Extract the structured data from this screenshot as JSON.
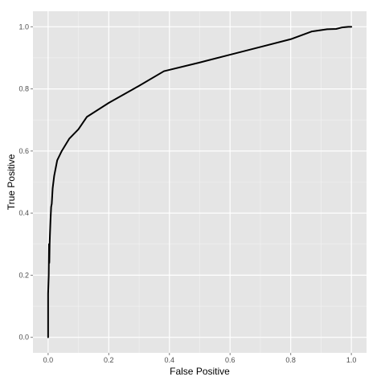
{
  "chart_data": {
    "type": "line",
    "title": "",
    "xlabel": "False Positive",
    "ylabel": "True Positive",
    "xlim": [
      -0.05,
      1.05
    ],
    "ylim": [
      -0.05,
      1.05
    ],
    "x_ticks": [
      0.0,
      0.2,
      0.4,
      0.6,
      0.8,
      1.0
    ],
    "y_ticks": [
      0.0,
      0.2,
      0.4,
      0.6,
      0.8,
      1.0
    ],
    "x_tick_labels": [
      "0.0",
      "0.2",
      "0.4",
      "0.6",
      "0.8",
      "1.0"
    ],
    "y_tick_labels": [
      "0.0",
      "0.2",
      "0.4",
      "0.6",
      "0.8",
      "1.0"
    ],
    "grid": true,
    "legend": "none",
    "series": [
      {
        "x": [
          0.0,
          0.0,
          0.002,
          0.003,
          0.004,
          0.005,
          0.006,
          0.008,
          0.01,
          0.012,
          0.015,
          0.02,
          0.03,
          0.045,
          0.07,
          0.1,
          0.128,
          0.2,
          0.3,
          0.382,
          0.5,
          0.6,
          0.7,
          0.8,
          0.87,
          0.92,
          0.95,
          0.97,
          0.99,
          1.0
        ],
        "y": [
          0.0,
          0.14,
          0.2,
          0.3,
          0.24,
          0.3,
          0.33,
          0.38,
          0.42,
          0.43,
          0.48,
          0.52,
          0.57,
          0.6,
          0.64,
          0.67,
          0.71,
          0.755,
          0.81,
          0.857,
          0.885,
          0.91,
          0.935,
          0.96,
          0.985,
          0.992,
          0.993,
          0.998,
          1.0,
          1.0
        ]
      }
    ]
  },
  "colors": {
    "panel_bg": "#e5e5e5",
    "grid_major": "#ffffff",
    "grid_minor": "#f2f2f2",
    "line": "#000000",
    "tick_label": "#4d4d4d"
  }
}
